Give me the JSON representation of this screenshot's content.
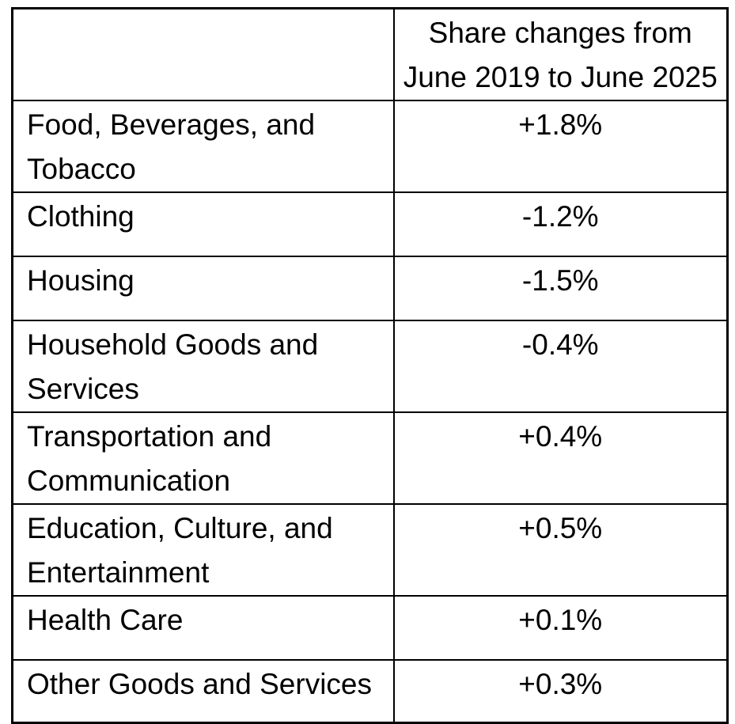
{
  "table": {
    "header": {
      "category_label": "",
      "value_label": "Share changes from June 2019 to June 2025"
    },
    "rows": [
      {
        "category": "Food, Beverages, and Tobacco",
        "value": "+1.8%"
      },
      {
        "category": "Clothing",
        "value": "-1.2%"
      },
      {
        "category": "Housing",
        "value": "-1.5%"
      },
      {
        "category": "Household Goods and Services",
        "value": "-0.4%"
      },
      {
        "category": "Transportation and Communication",
        "value": "+0.4%"
      },
      {
        "category": "Education, Culture, and Entertainment",
        "value": "+0.5%"
      },
      {
        "category": "Health Care",
        "value": "+0.1%"
      },
      {
        "category": "Other Goods and Services",
        "value": "+0.3%"
      }
    ],
    "colors": {
      "border": "#000000",
      "text": "#000000",
      "background": "#ffffff"
    }
  },
  "chart_data": {
    "type": "table",
    "title": "Share changes from June 2019 to June 2025",
    "categories": [
      "Food, Beverages, and Tobacco",
      "Clothing",
      "Housing",
      "Household Goods and Services",
      "Transportation and Communication",
      "Education, Culture, and Entertainment",
      "Health Care",
      "Other Goods and Services"
    ],
    "values": [
      1.8,
      -1.2,
      -1.5,
      -0.4,
      0.4,
      0.5,
      0.1,
      0.3
    ],
    "unit": "percentage points (%)"
  }
}
